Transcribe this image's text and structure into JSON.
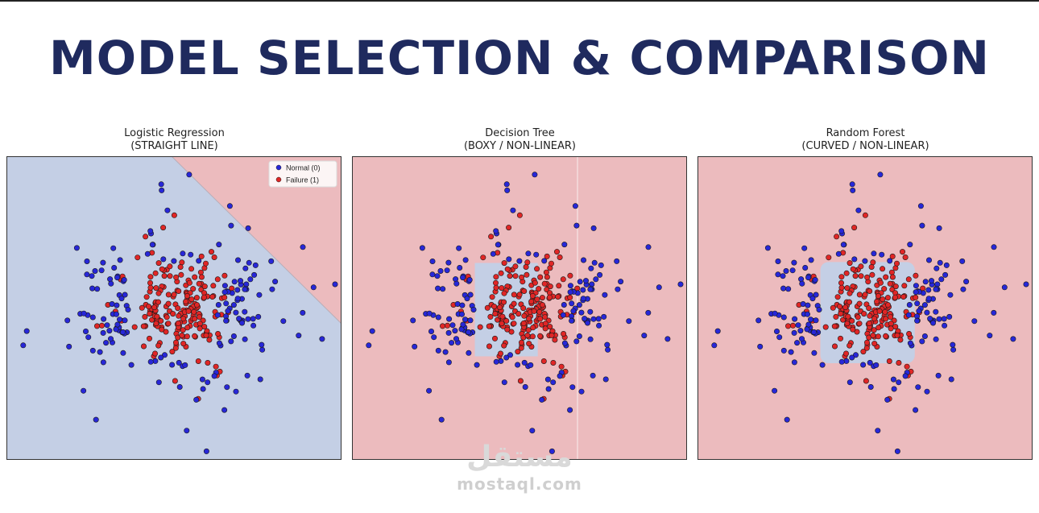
{
  "page": {
    "title": "MODEL SELECTION & COMPARISON"
  },
  "colors": {
    "title": "#1f2a5e",
    "normal_region": "#c4cfe5",
    "failure_region": "#ecbbbe",
    "normal_point": "#2727d8",
    "failure_point": "#e02626"
  },
  "legend": {
    "normal": "Normal (0)",
    "failure": "Failure (1)"
  },
  "watermark": {
    "arabic": "مستقل",
    "latin": "mostaql.com"
  },
  "chart_data": [
    {
      "type": "scatter",
      "title": "Logistic Regression",
      "subtitle": "(STRAIGHT LINE)",
      "boundary": "linear",
      "xlim": [
        -3.3,
        3.3
      ],
      "ylim": [
        -3.3,
        3.3
      ],
      "grid": false,
      "legend_position": "top-right",
      "series": [
        {
          "name": "Normal (0)",
          "color": "#2727d8"
        },
        {
          "name": "Failure (1)",
          "color": "#e02626"
        }
      ]
    },
    {
      "type": "scatter",
      "title": "Decision Tree",
      "subtitle": "(BOXY / NON-LINEAR)",
      "boundary": "box",
      "xlim": [
        -3.3,
        3.3
      ],
      "ylim": [
        -3.3,
        3.3
      ],
      "grid": false,
      "series": [
        {
          "name": "Normal (0)",
          "color": "#2727d8"
        },
        {
          "name": "Failure (1)",
          "color": "#e02626"
        }
      ]
    },
    {
      "type": "scatter",
      "title": "Random Forest",
      "subtitle": "(CURVED / NON-LINEAR)",
      "boundary": "rounded-box",
      "xlim": [
        -3.3,
        3.3
      ],
      "ylim": [
        -3.3,
        3.3
      ],
      "grid": false,
      "series": [
        {
          "name": "Normal (0)",
          "color": "#2727d8"
        },
        {
          "name": "Failure (1)",
          "color": "#e02626"
        }
      ]
    }
  ]
}
